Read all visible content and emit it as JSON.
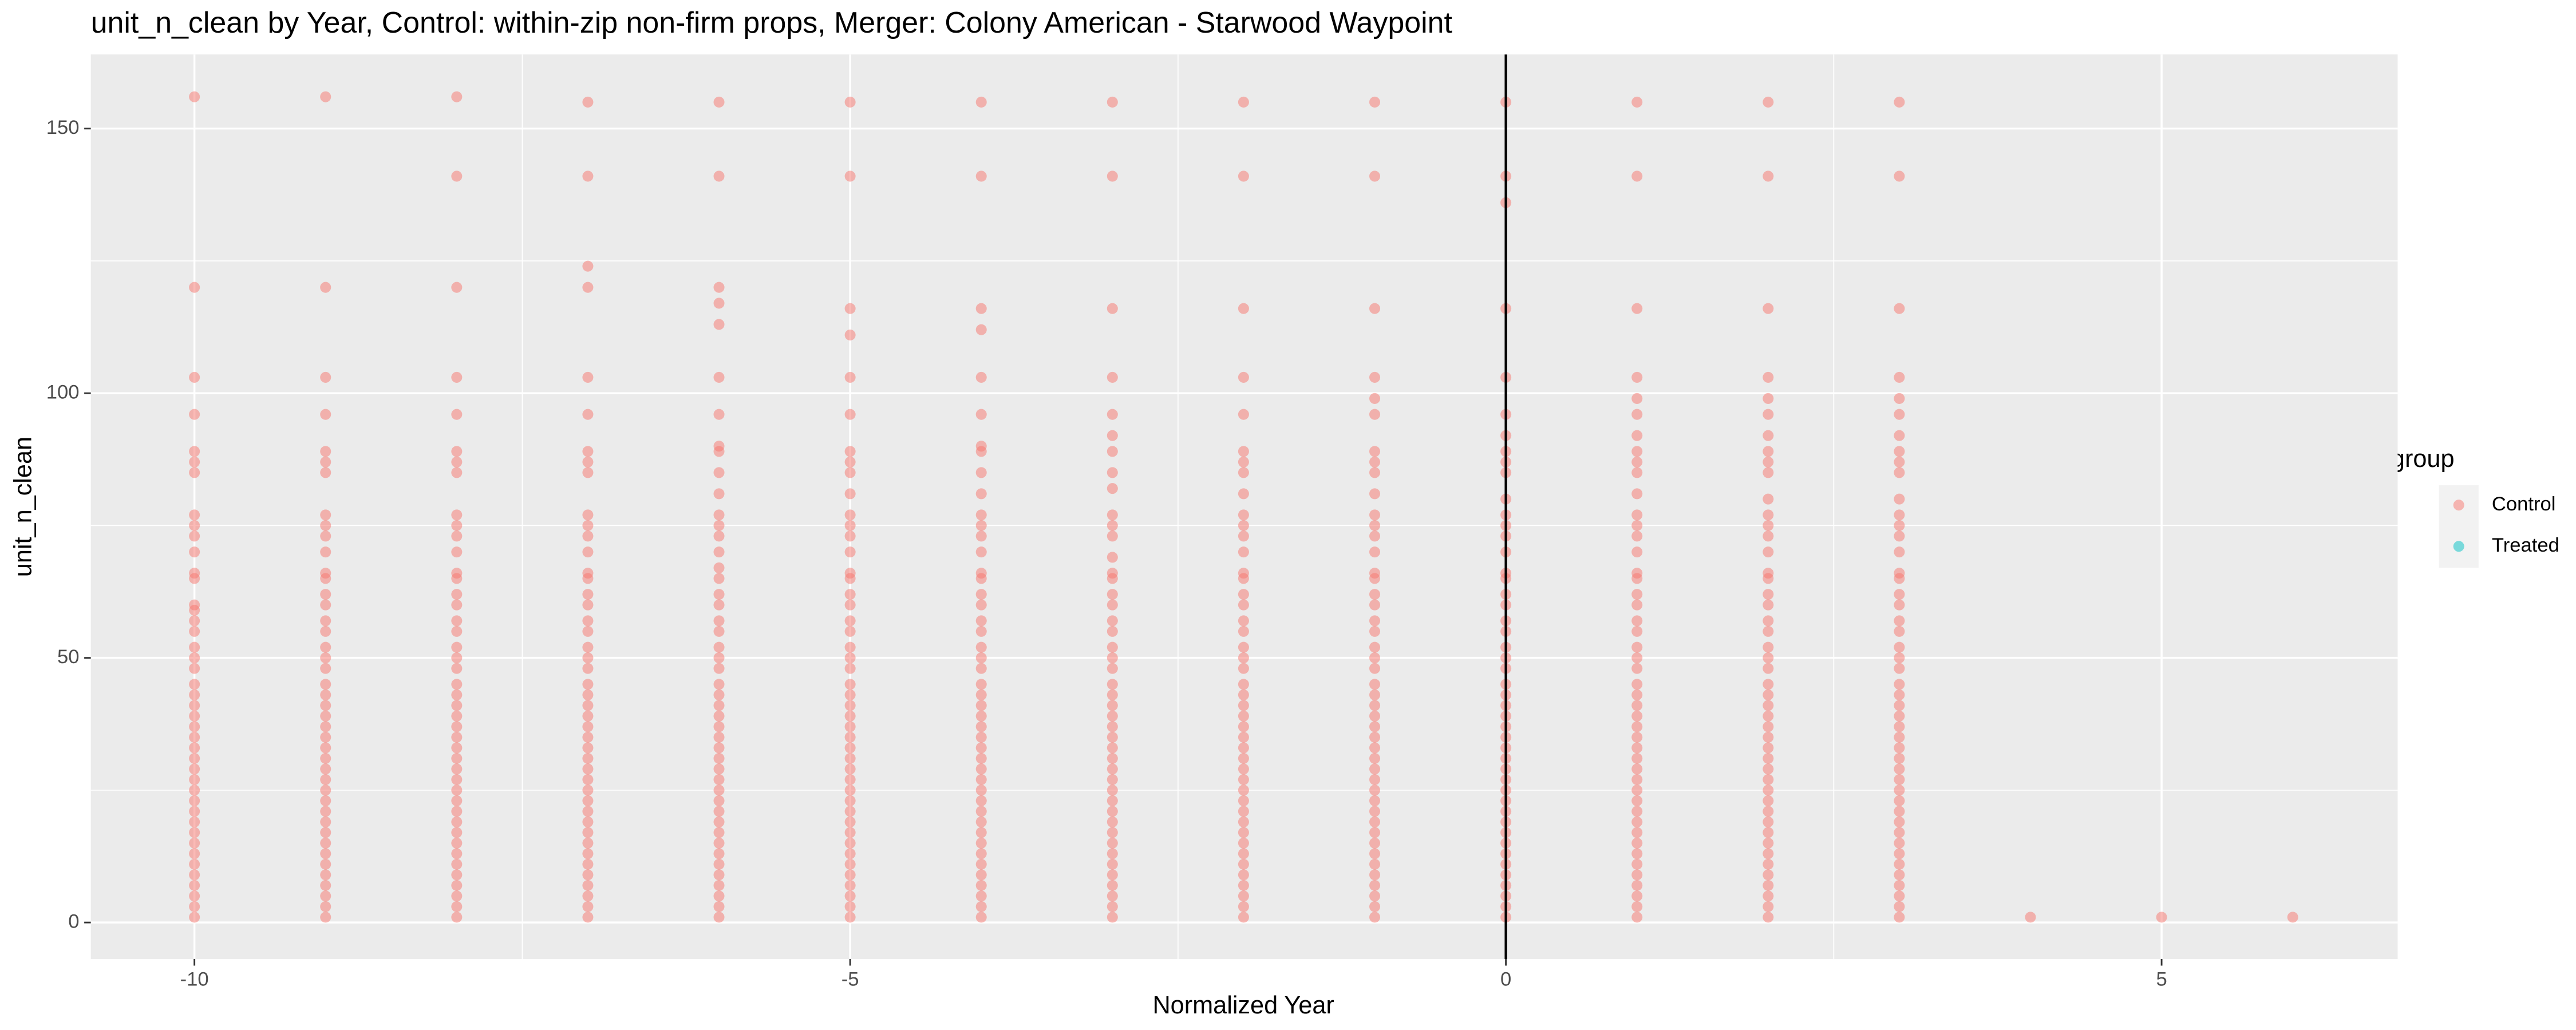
{
  "chart_data": {
    "type": "scatter",
    "title": "unit_n_clean by Year, Control: within-zip non-firm props, Merger: Colony American - Starwood Waypoint",
    "x_label": "Normalized Year",
    "y_label": "unit_n_clean",
    "legend_title": "group",
    "legend_position": "right",
    "grid": true,
    "vline": 0,
    "xlim": [
      -10.79,
      6.8
    ],
    "ylim": [
      -6.9,
      164
    ],
    "xticks": [
      -10,
      -5,
      0,
      5
    ],
    "yticks": [
      0,
      50,
      100,
      150
    ],
    "series": [
      {
        "name": "Control",
        "color": "#F8766D",
        "x": [
          -10,
          -9,
          -8,
          -7,
          -6,
          -5,
          -4,
          -3,
          -2,
          -1,
          0,
          1,
          2,
          3,
          4,
          5,
          6
        ],
        "values": [
          [
            1,
            3,
            5,
            7,
            9,
            11,
            13,
            15,
            17,
            19,
            21,
            23,
            25,
            27,
            29,
            31,
            33,
            35,
            37,
            39,
            41,
            43,
            45,
            48,
            50,
            52,
            55,
            57,
            59,
            60,
            65,
            66,
            70,
            73,
            75,
            77,
            85,
            87,
            89,
            96,
            103,
            120,
            156
          ],
          [
            1,
            3,
            5,
            7,
            9,
            11,
            13,
            15,
            17,
            19,
            21,
            23,
            25,
            27,
            29,
            31,
            33,
            35,
            37,
            39,
            41,
            43,
            45,
            48,
            50,
            52,
            55,
            57,
            60,
            62,
            65,
            66,
            70,
            73,
            75,
            77,
            85,
            87,
            89,
            96,
            103,
            120,
            156
          ],
          [
            1,
            3,
            5,
            7,
            9,
            11,
            13,
            15,
            17,
            19,
            21,
            23,
            25,
            27,
            29,
            31,
            33,
            35,
            37,
            39,
            41,
            43,
            45,
            48,
            50,
            52,
            55,
            57,
            60,
            62,
            65,
            66,
            70,
            73,
            75,
            77,
            85,
            87,
            89,
            96,
            103,
            120,
            141,
            156
          ],
          [
            1,
            3,
            5,
            7,
            9,
            11,
            13,
            15,
            17,
            19,
            21,
            23,
            25,
            27,
            29,
            31,
            33,
            35,
            37,
            39,
            41,
            43,
            45,
            48,
            50,
            52,
            55,
            57,
            60,
            62,
            65,
            66,
            70,
            73,
            75,
            77,
            85,
            87,
            89,
            96,
            103,
            120,
            124,
            141,
            155
          ],
          [
            1,
            3,
            5,
            7,
            9,
            11,
            13,
            15,
            17,
            19,
            21,
            23,
            25,
            27,
            29,
            31,
            33,
            35,
            37,
            39,
            41,
            43,
            45,
            48,
            50,
            52,
            55,
            57,
            60,
            62,
            65,
            67,
            70,
            73,
            75,
            77,
            81,
            85,
            89,
            90,
            96,
            103,
            113,
            117,
            120,
            141,
            155
          ],
          [
            1,
            3,
            5,
            7,
            9,
            11,
            13,
            15,
            17,
            19,
            21,
            23,
            25,
            27,
            29,
            31,
            33,
            35,
            37,
            39,
            41,
            43,
            45,
            48,
            50,
            52,
            55,
            57,
            60,
            62,
            65,
            66,
            70,
            73,
            75,
            77,
            81,
            85,
            87,
            89,
            96,
            103,
            111,
            116,
            141,
            155
          ],
          [
            1,
            3,
            5,
            7,
            9,
            11,
            13,
            15,
            17,
            19,
            21,
            23,
            25,
            27,
            29,
            31,
            33,
            35,
            37,
            39,
            41,
            43,
            45,
            48,
            50,
            52,
            55,
            57,
            60,
            62,
            65,
            66,
            70,
            73,
            75,
            77,
            81,
            85,
            89,
            90,
            96,
            103,
            112,
            116,
            141,
            155
          ],
          [
            1,
            3,
            5,
            7,
            9,
            11,
            13,
            15,
            17,
            19,
            21,
            23,
            25,
            27,
            29,
            31,
            33,
            35,
            37,
            39,
            41,
            43,
            45,
            48,
            50,
            52,
            55,
            57,
            60,
            62,
            65,
            66,
            69,
            73,
            75,
            77,
            82,
            85,
            89,
            92,
            96,
            103,
            116,
            141,
            155
          ],
          [
            1,
            3,
            5,
            7,
            9,
            11,
            13,
            15,
            17,
            19,
            21,
            23,
            25,
            27,
            29,
            31,
            33,
            35,
            37,
            39,
            41,
            43,
            45,
            48,
            50,
            52,
            55,
            57,
            60,
            62,
            65,
            66,
            70,
            73,
            75,
            77,
            81,
            85,
            87,
            89,
            96,
            103,
            116,
            141,
            155
          ],
          [
            1,
            3,
            5,
            7,
            9,
            11,
            13,
            15,
            17,
            19,
            21,
            23,
            25,
            27,
            29,
            31,
            33,
            35,
            37,
            39,
            41,
            43,
            45,
            48,
            50,
            52,
            55,
            57,
            60,
            62,
            65,
            66,
            70,
            73,
            75,
            77,
            81,
            85,
            87,
            89,
            96,
            99,
            103,
            116,
            141,
            155
          ],
          [
            1,
            3,
            5,
            7,
            9,
            11,
            13,
            15,
            17,
            19,
            21,
            23,
            25,
            27,
            29,
            31,
            33,
            35,
            37,
            39,
            41,
            43,
            45,
            48,
            50,
            52,
            55,
            57,
            60,
            62,
            65,
            66,
            70,
            73,
            75,
            77,
            80,
            85,
            87,
            89,
            92,
            96,
            103,
            116,
            136,
            141,
            155
          ],
          [
            1,
            3,
            5,
            7,
            9,
            11,
            13,
            15,
            17,
            19,
            21,
            23,
            25,
            27,
            29,
            31,
            33,
            35,
            37,
            39,
            41,
            43,
            45,
            48,
            50,
            52,
            55,
            57,
            60,
            62,
            65,
            66,
            70,
            73,
            75,
            77,
            81,
            85,
            87,
            89,
            92,
            96,
            99,
            103,
            116,
            141,
            155
          ],
          [
            1,
            3,
            5,
            7,
            9,
            11,
            13,
            15,
            17,
            19,
            21,
            23,
            25,
            27,
            29,
            31,
            33,
            35,
            37,
            39,
            41,
            43,
            45,
            48,
            50,
            52,
            55,
            57,
            60,
            62,
            65,
            66,
            70,
            73,
            75,
            77,
            80,
            85,
            87,
            89,
            92,
            96,
            99,
            103,
            116,
            141,
            155
          ],
          [
            1,
            3,
            5,
            7,
            9,
            11,
            13,
            15,
            17,
            19,
            21,
            23,
            25,
            27,
            29,
            31,
            33,
            35,
            37,
            39,
            41,
            43,
            45,
            48,
            50,
            52,
            55,
            57,
            60,
            62,
            65,
            66,
            70,
            73,
            75,
            77,
            80,
            85,
            87,
            89,
            92,
            96,
            99,
            103,
            116,
            141,
            155
          ],
          [
            1
          ],
          [
            1
          ],
          [
            1
          ]
        ]
      },
      {
        "name": "Treated",
        "color": "#00BFC4",
        "x": [],
        "values": []
      }
    ]
  }
}
